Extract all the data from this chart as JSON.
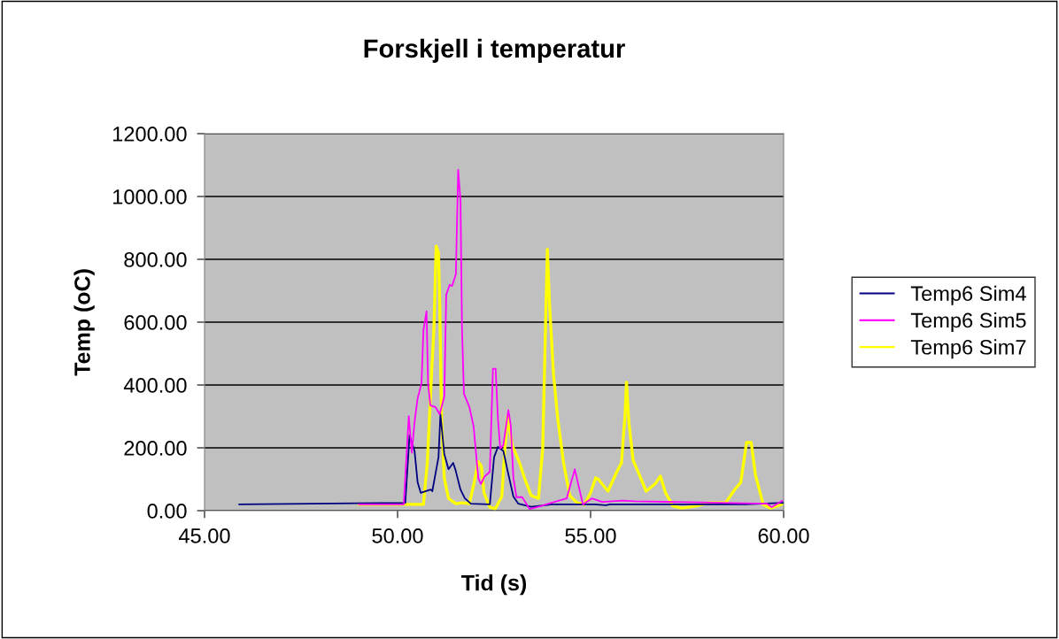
{
  "chart_data": {
    "type": "line",
    "title": "Forskjell i temperatur",
    "xlabel": "Tid (s)",
    "ylabel": "Temp (oC)",
    "xlim": [
      45,
      60
    ],
    "ylim": [
      0,
      1200
    ],
    "xticks": [
      {
        "value": 45,
        "label": "45.00"
      },
      {
        "value": 50,
        "label": "50.00"
      },
      {
        "value": 55,
        "label": "55.00"
      },
      {
        "value": 60,
        "label": "60.00"
      }
    ],
    "yticks": [
      {
        "value": 0,
        "label": "0.00"
      },
      {
        "value": 200,
        "label": "200.00"
      },
      {
        "value": 400,
        "label": "400.00"
      },
      {
        "value": 600,
        "label": "600.00"
      },
      {
        "value": 800,
        "label": "800.00"
      },
      {
        "value": 1000,
        "label": "1000.00"
      },
      {
        "value": 1200,
        "label": "1200.00"
      }
    ],
    "grid": "y",
    "legend": "right",
    "marker": "none",
    "line_style": "solid",
    "series": [
      {
        "name": "Temp6 Sim4",
        "color": "#000080",
        "x": [
          45.9,
          50.2,
          50.31,
          50.44,
          50.52,
          50.6,
          50.86,
          50.9,
          51.06,
          51.11,
          51.21,
          51.32,
          51.44,
          51.5,
          51.63,
          51.74,
          51.9,
          52.39,
          52.5,
          52.6,
          52.74,
          52.85,
          53.0,
          53.13,
          53.46,
          54.0,
          55.1,
          55.4,
          55.5,
          57.0,
          59.0,
          60.0
        ],
        "values": [
          20,
          25,
          240,
          190,
          90,
          57,
          67,
          62,
          170,
          307,
          180,
          132,
          152,
          130,
          67,
          40,
          22,
          20,
          170,
          203,
          190,
          127,
          45,
          22,
          12,
          20,
          20,
          17,
          20,
          20,
          20,
          25
        ]
      },
      {
        "name": "Temp6 Sim5",
        "color": "#ff00ff",
        "x": [
          49.0,
          50.16,
          50.29,
          50.37,
          50.44,
          50.52,
          50.62,
          50.67,
          50.75,
          50.79,
          50.85,
          50.98,
          51.09,
          51.21,
          51.26,
          51.35,
          51.41,
          51.51,
          51.57,
          51.63,
          51.67,
          51.72,
          51.86,
          51.97,
          52.09,
          52.16,
          52.25,
          52.39,
          52.47,
          52.54,
          52.6,
          52.66,
          52.74,
          52.87,
          52.93,
          53.0,
          53.08,
          53.23,
          53.42,
          53.69,
          53.85,
          54.38,
          54.59,
          54.8,
          55.03,
          55.3,
          55.83,
          56.14,
          59.58,
          59.69,
          59.96
        ],
        "values": [
          20,
          20,
          301,
          184,
          283,
          358,
          405,
          574,
          635,
          405,
          335,
          330,
          307,
          363,
          687,
          719,
          715,
          752,
          1085,
          987,
          574,
          372,
          330,
          268,
          104,
          85,
          108,
          124,
          452,
          452,
          292,
          198,
          208,
          320,
          273,
          104,
          43,
          43,
          5,
          14,
          20,
          39,
          132,
          20,
          39,
          28,
          32,
          30,
          22,
          11,
          31
        ]
      },
      {
        "name": "Temp6 Sim7",
        "color": "#ffff00",
        "x": [
          49.0,
          50.67,
          50.77,
          50.88,
          50.94,
          51.0,
          51.06,
          51.09,
          51.14,
          51.21,
          51.32,
          51.51,
          51.66,
          51.86,
          51.97,
          52.09,
          52.17,
          52.24,
          52.39,
          52.53,
          52.7,
          52.78,
          52.85,
          52.97,
          53.16,
          53.31,
          53.46,
          53.65,
          53.76,
          53.83,
          53.88,
          53.94,
          54.04,
          54.15,
          54.3,
          54.46,
          54.65,
          54.84,
          55.0,
          55.13,
          55.2,
          55.45,
          55.68,
          55.8,
          55.89,
          55.93,
          55.99,
          56.1,
          56.25,
          56.44,
          56.67,
          56.81,
          56.94,
          57.13,
          57.36,
          57.75,
          58.05,
          58.5,
          58.73,
          58.89,
          59.04,
          59.16,
          59.27,
          59.47,
          59.66,
          59.96
        ],
        "values": [
          20,
          20,
          152,
          434,
          574,
          842,
          820,
          668,
          292,
          104,
          39,
          22,
          25,
          22,
          81,
          156,
          142,
          57,
          11,
          6,
          45,
          198,
          301,
          208,
          152,
          96,
          48,
          39,
          198,
          574,
          832,
          649,
          434,
          292,
          152,
          48,
          25,
          20,
          57,
          104,
          100,
          62,
          124,
          152,
          301,
          409,
          283,
          161,
          118,
          62,
          85,
          110,
          57,
          15,
          8,
          15,
          25,
          25,
          67,
          90,
          217,
          217,
          114,
          20,
          8,
          20
        ]
      }
    ]
  }
}
